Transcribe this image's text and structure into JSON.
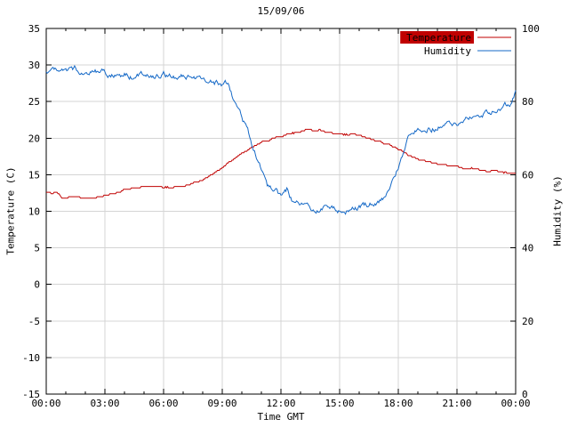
{
  "chart_data": {
    "type": "line",
    "title": "15/09/06",
    "xlabel": "Time GMT",
    "ylabel": "Temperature (C)",
    "y2label": "Humidity (%)",
    "xlim": [
      0,
      24
    ],
    "x_tick_hours": [
      0,
      3,
      6,
      9,
      12,
      15,
      18,
      21,
      24
    ],
    "x_ticks": [
      "00:00",
      "03:00",
      "06:00",
      "09:00",
      "12:00",
      "15:00",
      "18:00",
      "21:00",
      "00:00"
    ],
    "x_minor_step": 1,
    "ylim_left": [
      -15,
      35
    ],
    "yticks_left": [
      -15,
      -10,
      -5,
      0,
      5,
      10,
      15,
      20,
      25,
      30,
      35
    ],
    "ylim_right": [
      0,
      100
    ],
    "yticks_right": [
      0,
      20,
      40,
      60,
      80,
      100
    ],
    "grid": true,
    "grid_color": "#d4d4d4",
    "legend_position": "top-right",
    "series": [
      {
        "name": "Temperature",
        "axis": "left",
        "color": "#c00000",
        "boxed_legend": true,
        "noise": 0.1,
        "quantize": 0.2,
        "hours": [
          0,
          0.3,
          0.5,
          0.8,
          1,
          1.5,
          2,
          2.5,
          3,
          3.5,
          4,
          4.5,
          5,
          5.5,
          6,
          6.5,
          7,
          7.5,
          8,
          8.5,
          9,
          9.5,
          10,
          10.5,
          11,
          11.5,
          12,
          12.5,
          13,
          13.3,
          13.6,
          14,
          14.3,
          14.6,
          15,
          15.5,
          16,
          16.5,
          17,
          17.5,
          18,
          18.5,
          19,
          19.5,
          20,
          20.5,
          21,
          21.5,
          22,
          22.5,
          23,
          23.5,
          24
        ],
        "values": [
          12.6,
          12.4,
          12.7,
          11.9,
          11.9,
          12.0,
          11.8,
          11.9,
          12.1,
          12.5,
          12.9,
          13.2,
          13.4,
          13.4,
          13.3,
          13.3,
          13.4,
          13.8,
          14.3,
          15.1,
          16.0,
          17.0,
          17.9,
          18.7,
          19.4,
          19.9,
          20.3,
          20.6,
          20.9,
          21.2,
          21.0,
          21.1,
          20.8,
          20.7,
          20.6,
          20.5,
          20.4,
          20.0,
          19.6,
          19.1,
          18.6,
          17.8,
          17.2,
          16.8,
          16.5,
          16.3,
          16.1,
          15.9,
          15.8,
          15.6,
          15.5,
          15.3,
          15.2
        ]
      },
      {
        "name": "Humidity",
        "axis": "right",
        "color": "#1569c7",
        "boxed_legend": false,
        "noise": 1.1,
        "quantize": 0,
        "hours": [
          0,
          0.5,
          1,
          1.5,
          2,
          2.5,
          3,
          3.5,
          4,
          4.5,
          5,
          5.5,
          6,
          6.5,
          7,
          7.5,
          8,
          8.5,
          9,
          9.3,
          9.6,
          10,
          10.3,
          10.6,
          11,
          11.3,
          11.6,
          12,
          12.3,
          12.6,
          13,
          13.5,
          14,
          14.5,
          15,
          15.3,
          15.6,
          16,
          16.5,
          17,
          17.3,
          17.6,
          18,
          18.3,
          18.6,
          19,
          19.3,
          19.6,
          20,
          20.5,
          21,
          21.5,
          22,
          22.5,
          23,
          23.5,
          23.8,
          24
        ],
        "values": [
          88,
          89.5,
          88.5,
          89,
          88,
          88.5,
          88,
          87,
          87.5,
          86.5,
          88,
          87,
          87.5,
          86.5,
          87,
          86,
          86.5,
          85.5,
          84.5,
          85,
          80,
          76,
          72,
          67,
          62,
          57,
          56.5,
          54,
          56,
          52.5,
          52,
          51,
          50.5,
          51,
          50.5,
          50,
          51.5,
          51,
          52,
          53,
          54,
          57,
          62,
          67,
          71,
          72,
          73,
          72.5,
          73,
          74,
          73.5,
          75,
          76,
          77,
          78,
          79,
          80,
          83
        ]
      }
    ]
  }
}
